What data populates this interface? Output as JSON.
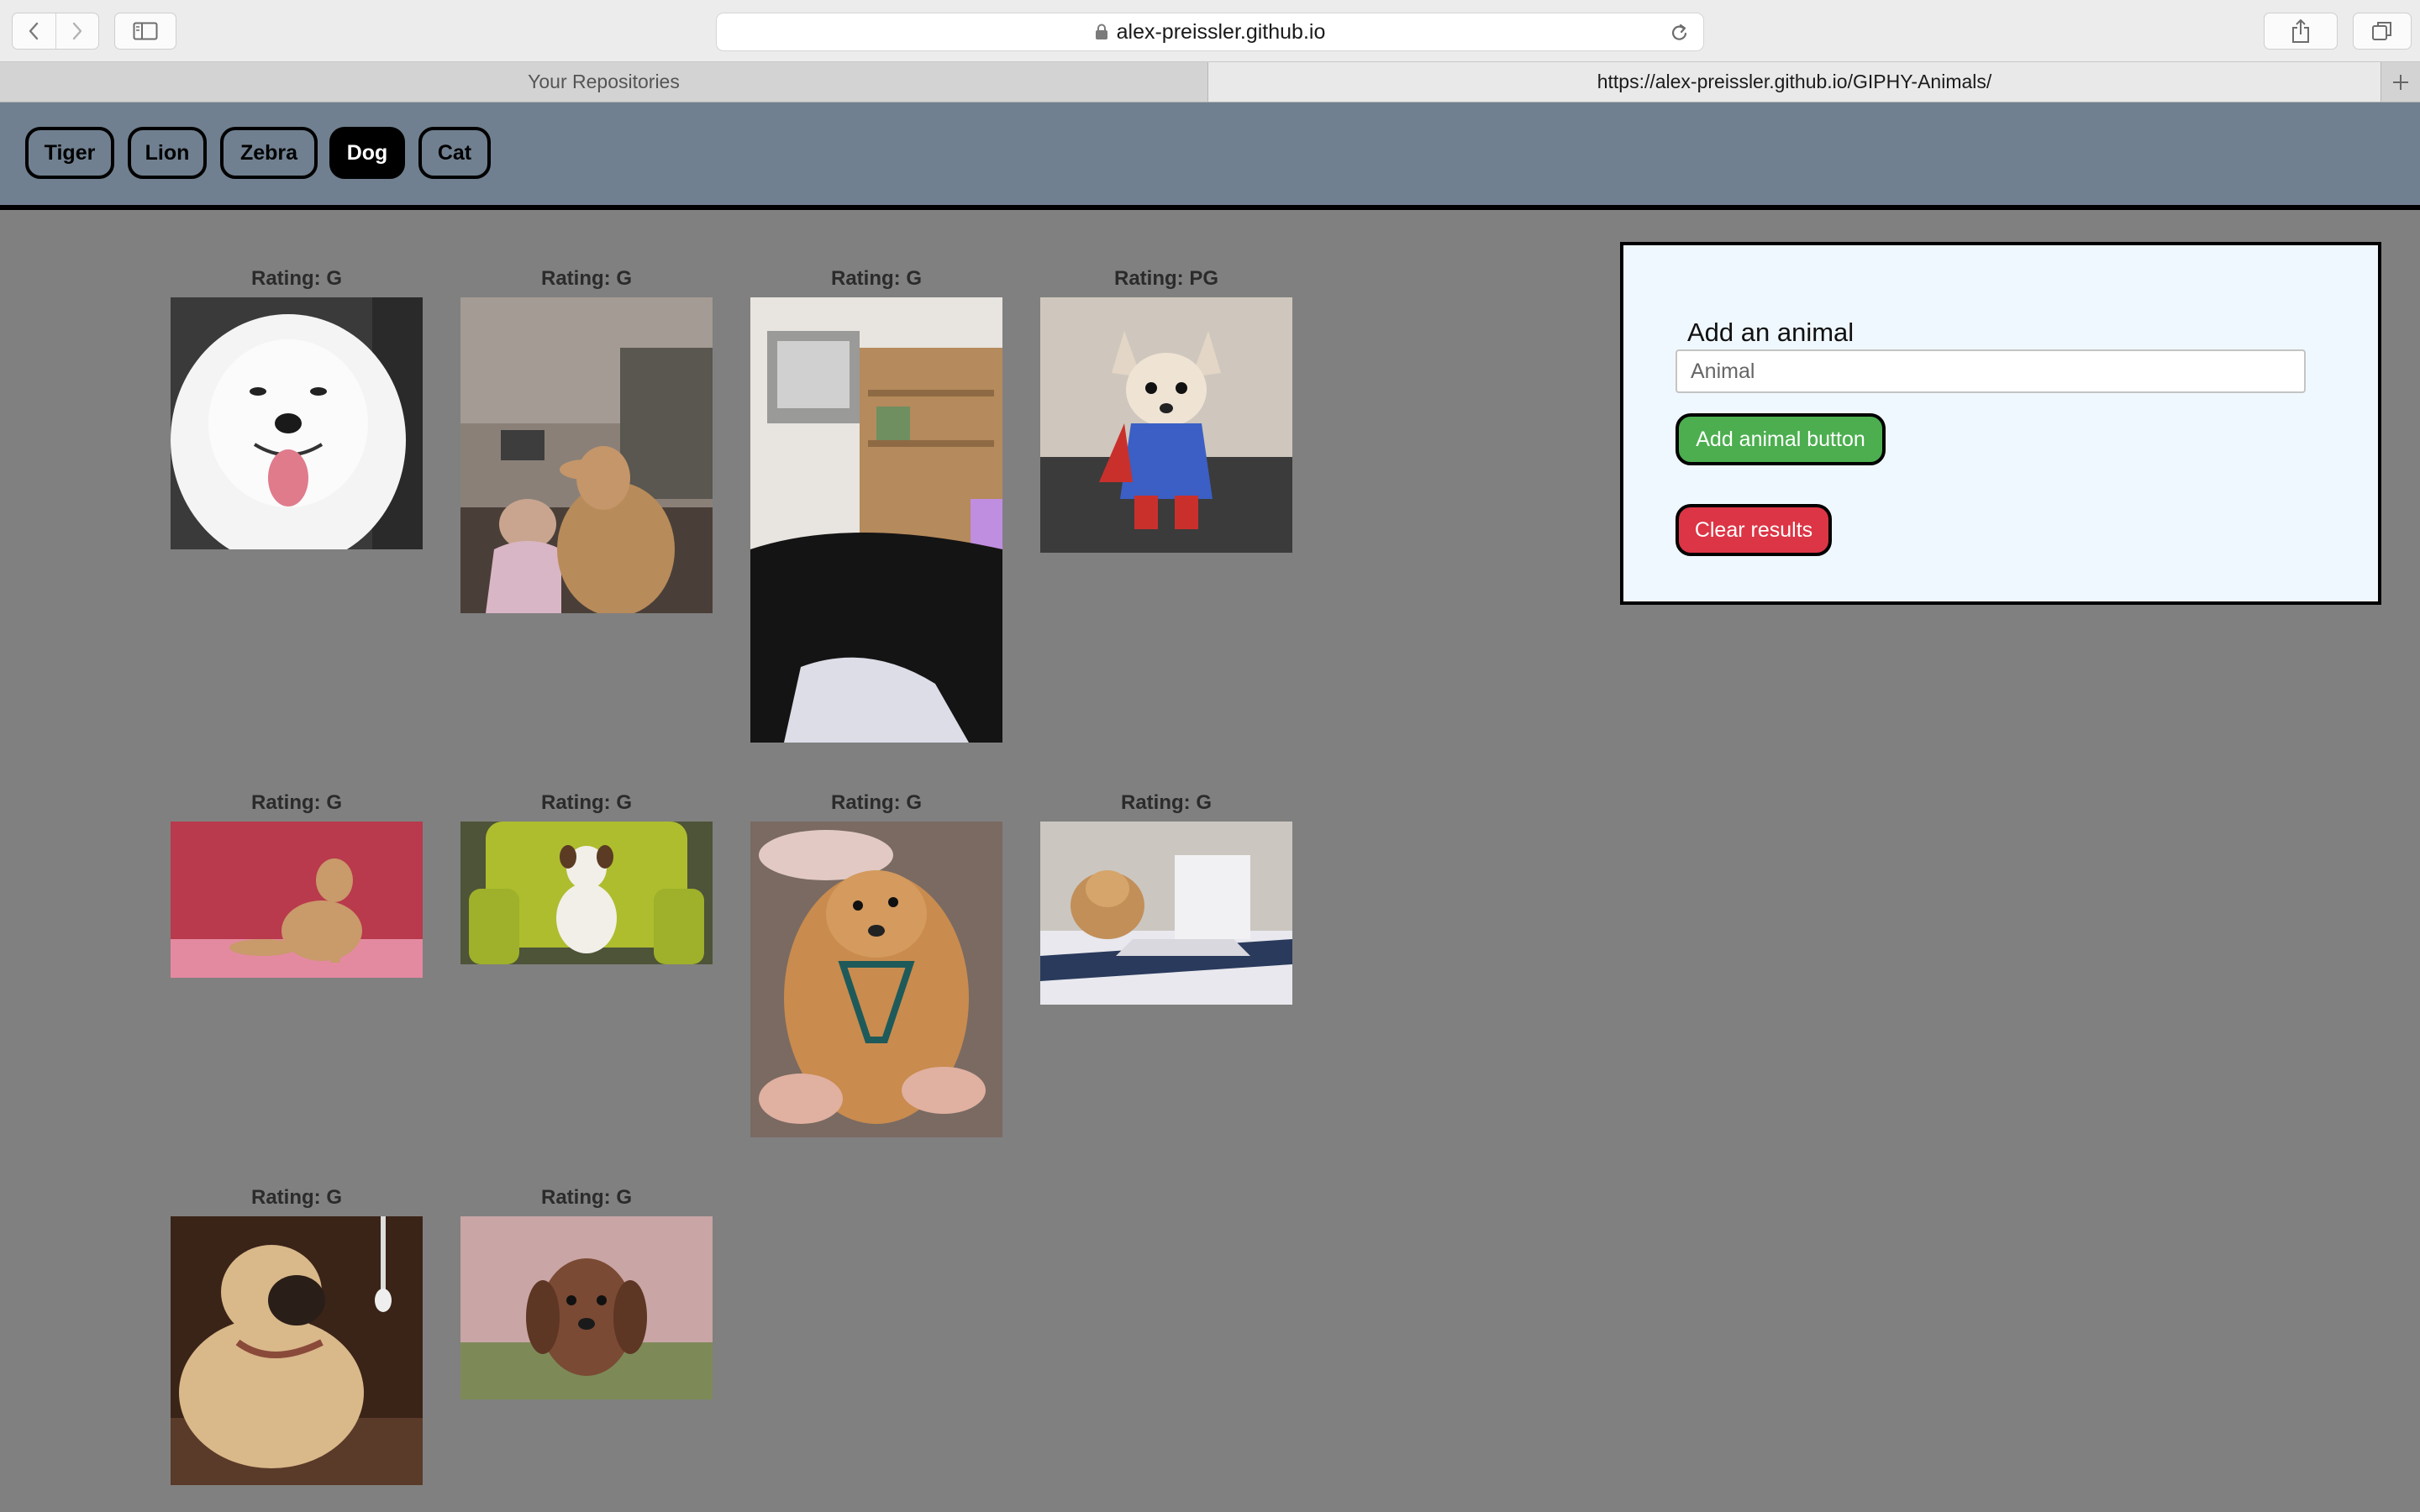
{
  "browser": {
    "address": "alex-preissler.github.io",
    "tabs": [
      {
        "label": "Your Repositories"
      },
      {
        "label": "https://alex-preissler.github.io/GIPHY-Animals/"
      }
    ],
    "icons": [
      "back-icon",
      "forward-icon",
      "sidebar-icon",
      "lock-icon",
      "reload-icon",
      "share-icon",
      "tabs-icon",
      "plus-icon"
    ]
  },
  "buttons": [
    {
      "label": "Tiger"
    },
    {
      "label": "Lion"
    },
    {
      "label": "Zebra"
    },
    {
      "label": "Dog"
    },
    {
      "label": "Cat"
    }
  ],
  "active_button": "Dog",
  "gifs": [
    {
      "rating": "Rating: G",
      "subject": "white samoyed smiling"
    },
    {
      "rating": "Rating: G",
      "subject": "tan dog on couch with child"
    },
    {
      "rating": "Rating: G",
      "subject": "black dog in living room"
    },
    {
      "rating": "Rating: PG",
      "subject": "chihuahua in superman costume"
    },
    {
      "rating": "Rating: G",
      "subject": "tan dog on pink floor"
    },
    {
      "rating": "Rating: G",
      "subject": "terrier on green armchair"
    },
    {
      "rating": "Rating: G",
      "subject": "golden puppy belly rub"
    },
    {
      "rating": "Rating: G",
      "subject": "dog with laptop on bed"
    },
    {
      "rating": "Rating: G",
      "subject": "pug on couch"
    },
    {
      "rating": "Rating: G",
      "subject": "dachshund on grass"
    }
  ],
  "form": {
    "title": "Add an animal",
    "input_placeholder": "Animal",
    "input_value": "",
    "add_label": "Add animal button",
    "clear_label": "Clear results"
  },
  "colors": {
    "page_bg": "#808080",
    "header_bg": "#708090",
    "panel_bg": "#f0f8ff",
    "add_button": "#4cae4f",
    "clear_button": "#dc3545"
  }
}
